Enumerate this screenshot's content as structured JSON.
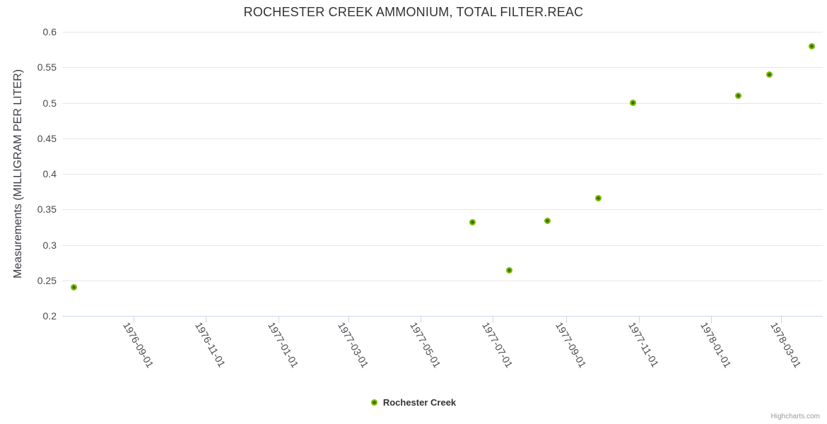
{
  "chart": {
    "title": "ROCHESTER CREEK AMMONIUM, TOTAL FILTER.REAC",
    "credits_label": "Highcharts.com"
  },
  "legend": {
    "items": [
      {
        "label": "Rochester Creek",
        "marker_color": "#7cb700",
        "marker_center_color": "#336d00"
      }
    ]
  },
  "chart_data": {
    "type": "scatter",
    "title": "ROCHESTER CREEK AMMONIUM, TOTAL FILTER.REAC",
    "xlabel": "",
    "ylabel": "Measurements (MILLIGRAM PER LITER)",
    "x_type": "datetime",
    "x_range": [
      "1976-07-03",
      "1978-04-05"
    ],
    "x_ticks": [
      "1976-09-01",
      "1976-11-01",
      "1977-01-01",
      "1977-03-01",
      "1977-05-01",
      "1977-07-01",
      "1977-09-01",
      "1977-11-01",
      "1978-01-01",
      "1978-03-01"
    ],
    "ylim": [
      0.2,
      0.6
    ],
    "y_tick_interval": 0.05,
    "y_ticks": [
      "0.2",
      "0.25",
      "0.3",
      "0.35",
      "0.4",
      "0.45",
      "0.5",
      "0.55",
      "0.6"
    ],
    "grid": "horizontal",
    "legend_position": "bottom-center",
    "series": [
      {
        "name": "Rochester Creek",
        "color": "#7cb700",
        "marker_center_color": "#336d00",
        "points": [
          {
            "date": "1976-07-13",
            "value": 0.24
          },
          {
            "date": "1977-06-14",
            "value": 0.332
          },
          {
            "date": "1977-07-15",
            "value": 0.264
          },
          {
            "date": "1977-08-16",
            "value": 0.334
          },
          {
            "date": "1977-09-28",
            "value": 0.366
          },
          {
            "date": "1977-10-27",
            "value": 0.5
          },
          {
            "date": "1978-01-24",
            "value": 0.51
          },
          {
            "date": "1978-02-19",
            "value": 0.54
          },
          {
            "date": "1978-03-27",
            "value": 0.58
          }
        ]
      }
    ],
    "colors": {
      "gridline": "#e6e6e6",
      "axis_line": "#ccd6eb",
      "title_text": "#333333",
      "axis_label_text": "#4a4a4f",
      "credits_text": "#999999"
    }
  }
}
